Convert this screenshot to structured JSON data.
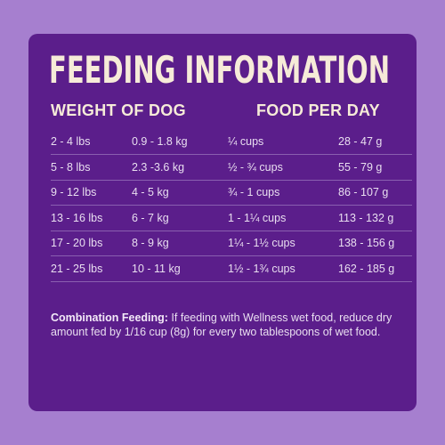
{
  "header": {
    "title": "FEEDING INFORMATION"
  },
  "table": {
    "columns": [
      "WEIGHT OF DOG",
      "FOOD PER DAY"
    ],
    "rows": [
      [
        "2 - 4 lbs",
        "0.9 - 1.8 kg",
        "¼ cups",
        "28 - 47 g"
      ],
      [
        "5 - 8 lbs",
        "2.3 -3.6 kg",
        "½ - ¾ cups",
        "55 - 79 g"
      ],
      [
        "9 - 12 lbs",
        "4 - 5 kg",
        "¾ - 1 cups",
        "86 - 107 g"
      ],
      [
        "13 - 16 lbs",
        "6 - 7 kg",
        "1 - 1¼ cups",
        "113 - 132 g"
      ],
      [
        "17 - 20 lbs",
        "8 - 9 kg",
        "1¼ - 1½ cups",
        "138 - 156 g"
      ],
      [
        "21 - 25 lbs",
        "10 - 11 kg",
        "1½ - 1¾ cups",
        "162 - 185 g"
      ]
    ]
  },
  "note": {
    "label": "Combination Feeding:",
    "text": "If feeding with Wellness wet food, reduce dry amount fed by 1/16 cup (8g) for every two tablespoons of wet food."
  }
}
